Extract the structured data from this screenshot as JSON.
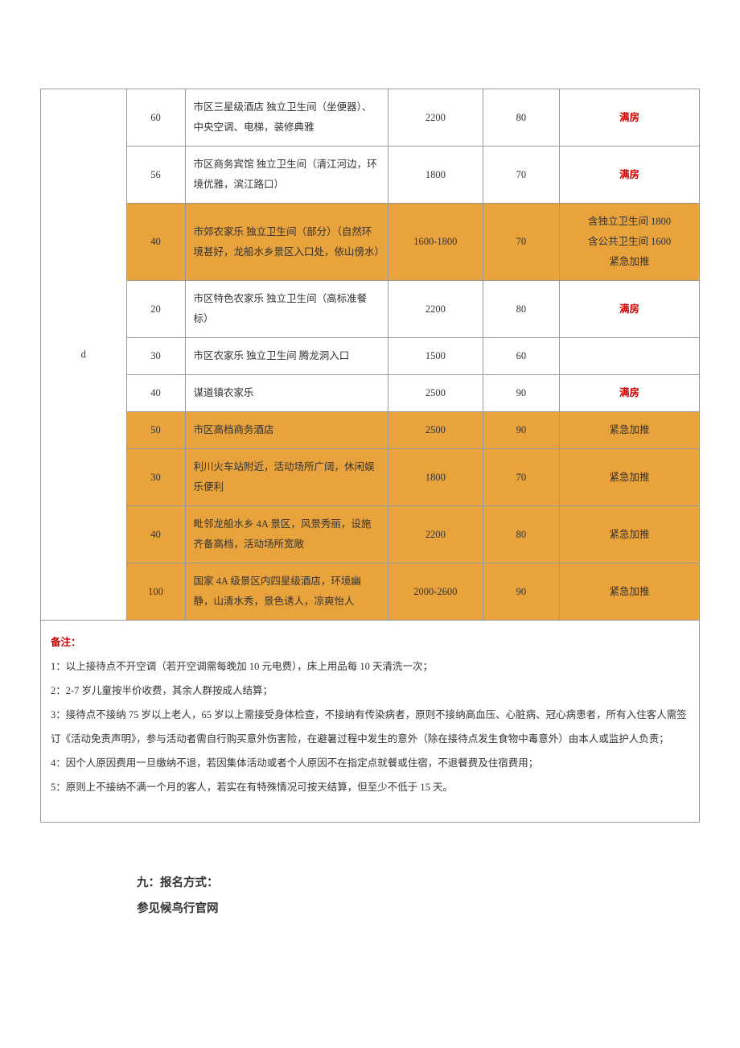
{
  "table": {
    "group_label": "d",
    "rows": [
      {
        "qty": "60",
        "desc": "市区三星级酒店 独立卫生间（坐便器）、中央空调、电梯，装修典雅",
        "price": "2200",
        "mid": "80",
        "status": "满房",
        "status_style": "red",
        "highlight": false,
        "status_multiline": false
      },
      {
        "qty": "56",
        "desc": "市区商务宾馆 独立卫生间（清江河边，环境优雅，滨江路口）",
        "price": "1800",
        "mid": "70",
        "status": "满房",
        "status_style": "red",
        "highlight": false,
        "status_multiline": false
      },
      {
        "qty": "40",
        "desc": "市郊农家乐 独立卫生间（部分）（自然环境甚好，龙船水乡景区入口处，依山傍水）",
        "price": "1600-1800",
        "mid": "70",
        "status_lines": [
          "含独立卫生间 1800",
          "含公共卫生间 1600",
          "紧急加推"
        ],
        "status_style": "plain",
        "highlight": true,
        "status_multiline": true
      },
      {
        "qty": "20",
        "desc": "市区特色农家乐 独立卫生间（高标准餐标）",
        "price": "2200",
        "mid": "80",
        "status": "满房",
        "status_style": "red",
        "highlight": false,
        "status_multiline": false
      },
      {
        "qty": "30",
        "desc": "市区农家乐 独立卫生间 腾龙洞入口",
        "price": "1500",
        "mid": "60",
        "status": "",
        "status_style": "plain",
        "highlight": false,
        "status_multiline": false
      },
      {
        "qty": "40",
        "desc": "谋道镇农家乐",
        "price": "2500",
        "mid": "90",
        "status": "满房",
        "status_style": "red",
        "highlight": false,
        "status_multiline": false
      },
      {
        "qty": "50",
        "desc": "市区高档商务酒店",
        "price": "2500",
        "mid": "90",
        "status": "紧急加推",
        "status_style": "plain",
        "highlight": true,
        "status_multiline": false
      },
      {
        "qty": "30",
        "desc": "利川火车站附近，活动场所广阔，休闲娱乐便利",
        "price": "1800",
        "mid": "70",
        "status": "紧急加推",
        "status_style": "plain",
        "highlight": true,
        "status_multiline": false
      },
      {
        "qty": "40",
        "desc": "毗邻龙船水乡 4A 景区，风景秀丽，设施齐备高档，活动场所宽敞",
        "price": "2200",
        "mid": "80",
        "status": "紧急加推",
        "status_style": "plain",
        "highlight": true,
        "status_multiline": false
      },
      {
        "qty": "100",
        "desc": "国家 4A 级景区内四星级酒店，环境幽静，山清水秀，景色诱人，凉爽怡人",
        "price": "2000-2600",
        "mid": "90",
        "status": "紧急加推",
        "status_style": "plain",
        "highlight": true,
        "status_multiline": false
      }
    ]
  },
  "notes": {
    "title": "备注：",
    "items": [
      "1：以上接待点不开空调（若开空调需每晚加 10 元电费），床上用品每 10 天清洗一次；",
      "2：2-7 岁儿童按半价收费，其余人群按成人结算；",
      "3：接待点不接纳 75 岁以上老人，65 岁以上需接受身体检查，不接纳有传染病者，原则不接纳高血压、心脏病、冠心病患者，所有入住客人需签订《活动免责声明》，参与活动者需自行购买意外伤害险，在避暑过程中发生的意外（除在接待点发生食物中毒意外）由本人或监护人负责；",
      "4：因个人原因费用一旦缴纳不退，若因集体活动或者个人原因不在指定点就餐或住宿，不退餐费及住宿费用；",
      "5：原则上不接纳不满一个月的客人，若实在有特殊情况可按天结算，但至少不低于 15 天。"
    ]
  },
  "footer": {
    "line1": "九：报名方式：",
    "line2": "参见候鸟行官网"
  },
  "colors": {
    "highlight_bg": "#e8a33d",
    "red_text": "#cc0000",
    "border": "#999999",
    "text": "#333333"
  }
}
